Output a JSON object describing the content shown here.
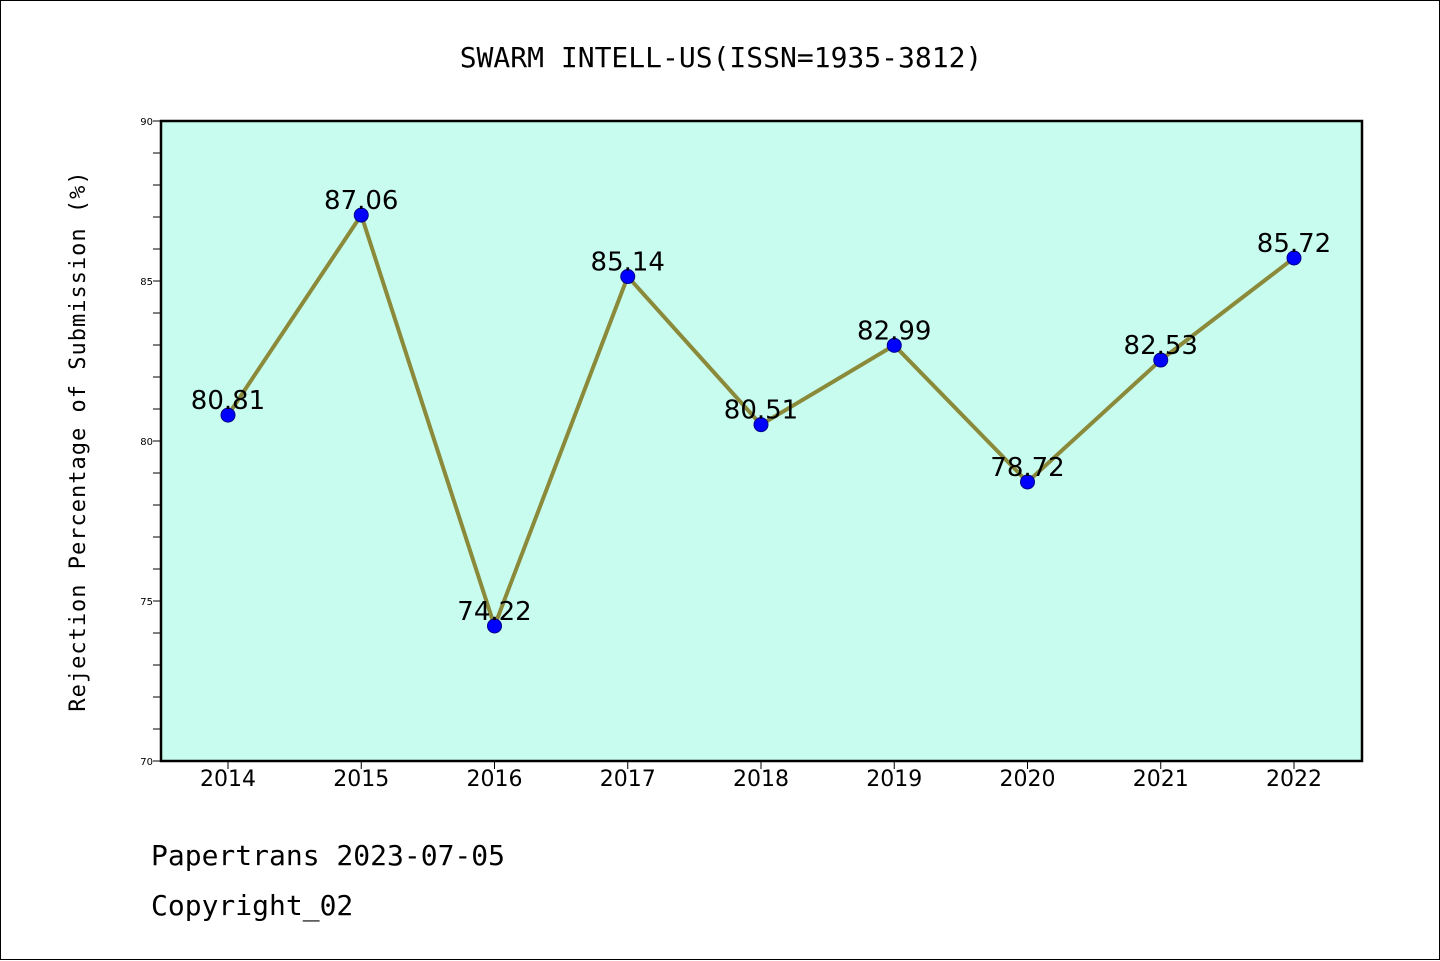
{
  "chart_data": {
    "type": "line",
    "title": "SWARM INTELL-US(ISSN=1935-3812)",
    "xlabel": "",
    "ylabel": "Rejection Percentage of Submission (%)",
    "categories": [
      "2014",
      "2015",
      "2016",
      "2017",
      "2018",
      "2019",
      "2020",
      "2021",
      "2022"
    ],
    "series": [
      {
        "values": [
          80.81,
          87.06,
          74.22,
          85.14,
          80.51,
          82.99,
          78.72,
          82.53,
          85.72
        ],
        "labels": [
          "80.81",
          "87.06",
          "74.22",
          "85.14",
          "80.51",
          "82.99",
          "78.72",
          "82.53",
          "85.72"
        ],
        "line_color": "#8b8a3a",
        "marker_color": "#0000ff"
      }
    ],
    "yticks": [
      "70",
      "75",
      "80",
      "85",
      "90"
    ],
    "ylim": [
      70,
      90
    ],
    "plot_background": "#c8fcee",
    "grid": false,
    "legend": "none"
  },
  "footer": {
    "line1": "Papertrans 2023-07-05",
    "line2": "Copyright_02"
  }
}
